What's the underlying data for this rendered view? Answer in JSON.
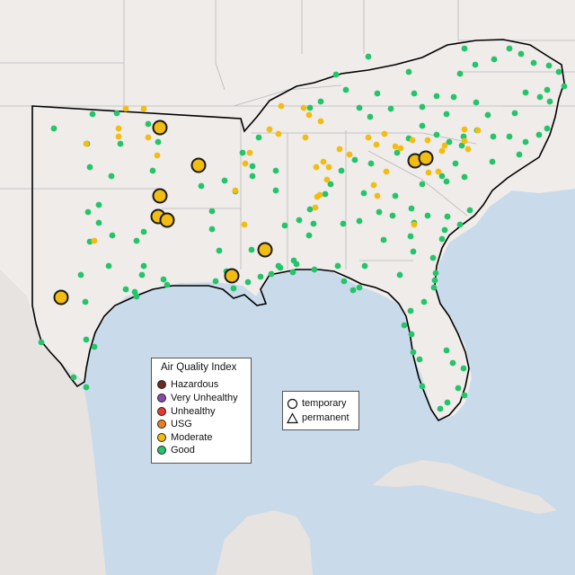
{
  "map": {
    "colors": {
      "water": "#c9daea",
      "land": "#efecea",
      "land_mexico": "#e6e3e0",
      "border": "#b5b5b5",
      "region_outline": "#000000",
      "Good": "#25c46a",
      "Moderate": "#f2bd12",
      "USG": "#ee7d22",
      "Unhealthy": "#e33b30",
      "Very Unhealthy": "#8a4aa9",
      "Hazardous": "#6d2b22"
    },
    "layers": [
      "state-boundaries",
      "region-outline",
      "monitor-points"
    ]
  },
  "aqi_legend": {
    "title": "Air Quality Index",
    "items": [
      {
        "label": "Hazardous",
        "color": "#6d2b22"
      },
      {
        "label": "Very Unhealthy",
        "color": "#8a4aa9"
      },
      {
        "label": "Unhealthy",
        "color": "#e33b30"
      },
      {
        "label": "USG",
        "color": "#ee7d22"
      },
      {
        "label": "Moderate",
        "color": "#f2bd12"
      },
      {
        "label": "Good",
        "color": "#25c46a"
      }
    ]
  },
  "type_legend": {
    "items": [
      {
        "label": "temporary",
        "shape": "circle"
      },
      {
        "label": "permanent",
        "shape": "triangle"
      }
    ]
  }
}
